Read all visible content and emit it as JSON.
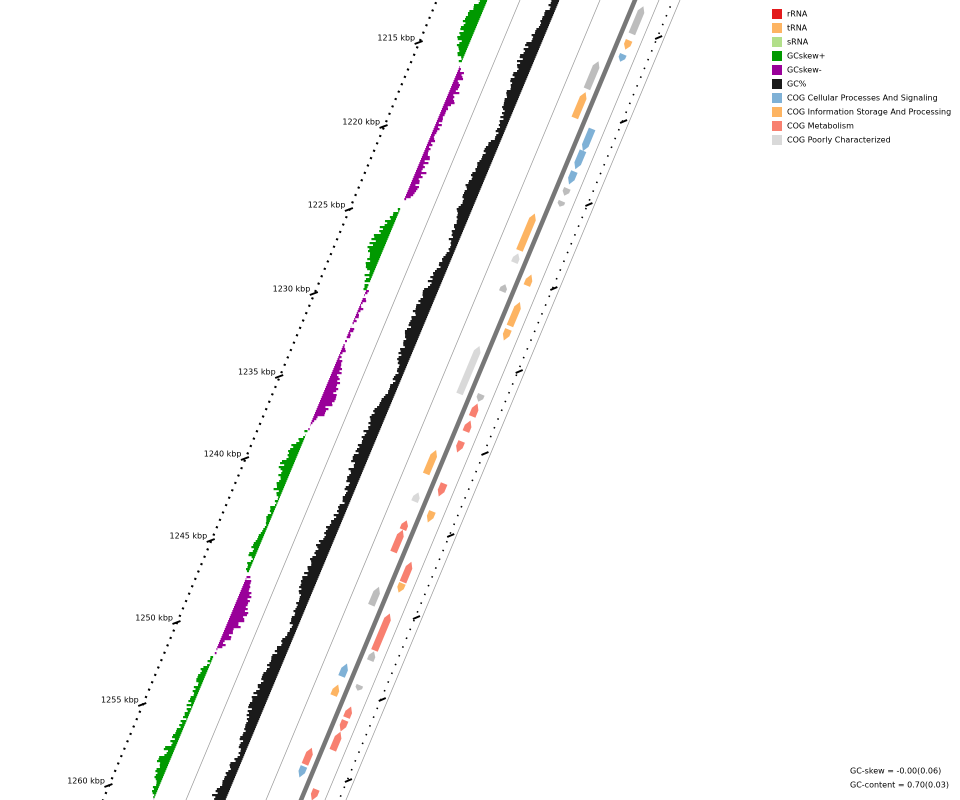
{
  "ticks": [
    "1215 kbp",
    "1220 kbp",
    "1225 kbp",
    "1230 kbp",
    "1235 kbp",
    "1240 kbp",
    "1245 kbp",
    "1250 kbp",
    "1255 kbp",
    "1260 kbp"
  ],
  "legend": [
    {
      "label": "rRNA",
      "color": "#e31a1c"
    },
    {
      "label": "tRNA",
      "color": "#fdb462"
    },
    {
      "label": "sRNA",
      "color": "#b2df8a"
    },
    {
      "label": "GCskew+",
      "color": "#009900"
    },
    {
      "label": "GCskew-",
      "color": "#990099"
    },
    {
      "label": "GC%",
      "color": "#1a1a1a"
    },
    {
      "label": "COG Cellular Processes And Signaling",
      "color": "#7fb1d6"
    },
    {
      "label": "COG Information Storage And Processing",
      "color": "#fdb462"
    },
    {
      "label": "COG Metabolism",
      "color": "#f88070"
    },
    {
      "label": "COG Poorly Characterized",
      "color": "#d9d9d9"
    }
  ],
  "stats": [
    "GC-skew = -0.00(0.06)",
    "GC-content = 0.70(0.03)"
  ]
}
